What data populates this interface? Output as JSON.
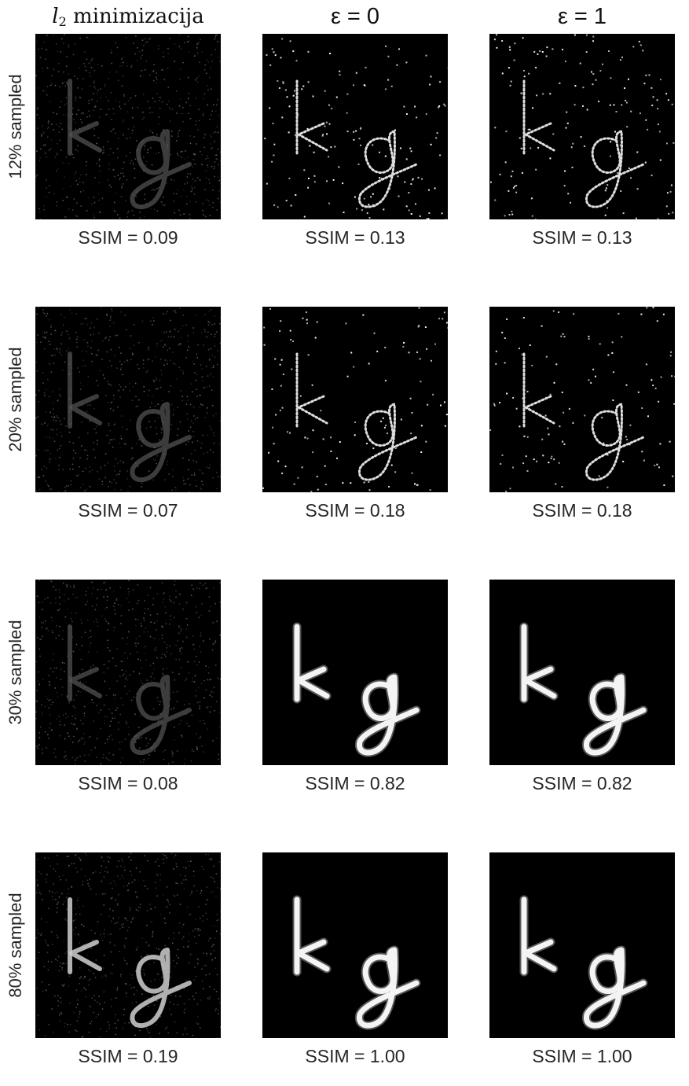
{
  "columns": [
    {
      "math": "l",
      "sub": "2",
      "text": " minimizacija",
      "style": "l2"
    },
    {
      "text": "ε = 0",
      "style": "eps0"
    },
    {
      "text": "ε = 1",
      "style": "eps1"
    }
  ],
  "rows": [
    {
      "label": "12% sampled",
      "ssim": [
        "SSIM = 0.09",
        "SSIM = 0.13",
        "SSIM = 0.13"
      ]
    },
    {
      "label": "20% sampled",
      "ssim": [
        "SSIM = 0.07",
        "SSIM = 0.18",
        "SSIM = 0.18"
      ]
    },
    {
      "label": "30% sampled",
      "ssim": [
        "SSIM = 0.08",
        "SSIM = 0.82",
        "SSIM = 0.82"
      ]
    },
    {
      "label": "80% sampled",
      "ssim": [
        "SSIM = 0.19",
        "SSIM = 1.00",
        "SSIM = 1.00"
      ]
    }
  ],
  "image_content": "kg"
}
